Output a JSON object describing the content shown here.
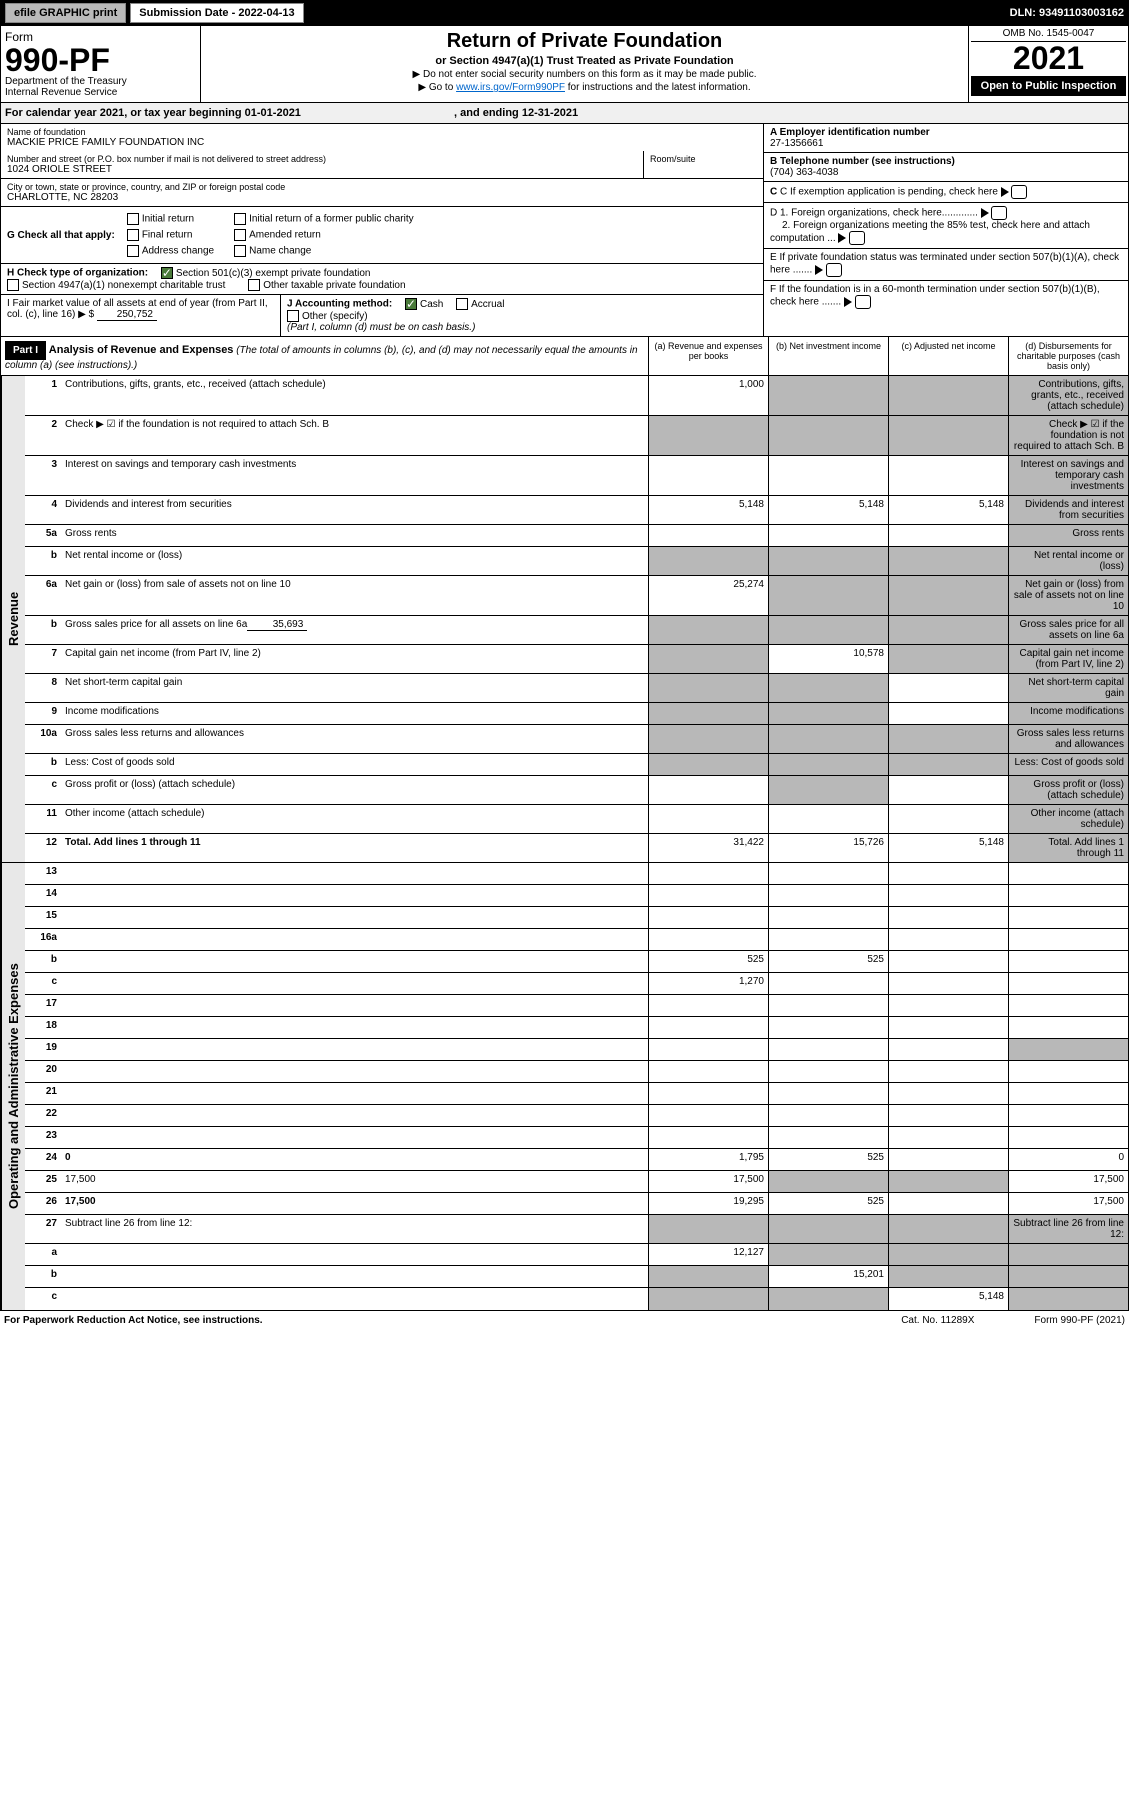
{
  "topbar": {
    "efile": "efile GRAPHIC print",
    "submission_label": "Submission Date - ",
    "submission_date": "2022-04-13",
    "dln_label": "DLN: ",
    "dln": "93491103003162"
  },
  "header": {
    "form_label": "Form",
    "form_no": "990-PF",
    "dept": "Department of the Treasury\nInternal Revenue Service",
    "title": "Return of Private Foundation",
    "subtitle": "or Section 4947(a)(1) Trust Treated as Private Foundation",
    "note1": "▶ Do not enter social security numbers on this form as it may be made public.",
    "note2_pre": "▶ Go to ",
    "note2_link": "www.irs.gov/Form990PF",
    "note2_post": " for instructions and the latest information.",
    "omb": "OMB No. 1545-0047",
    "year": "2021",
    "open": "Open to Public Inspection"
  },
  "calendar": {
    "text_pre": "For calendar year 2021, or tax year beginning ",
    "begin": "01-01-2021",
    "text_mid": " , and ending ",
    "end": "12-31-2021"
  },
  "foundation": {
    "name_label": "Name of foundation",
    "name": "MACKIE PRICE FAMILY FOUNDATION INC",
    "addr_label": "Number and street (or P.O. box number if mail is not delivered to street address)",
    "addr": "1024 ORIOLE STREET",
    "room_label": "Room/suite",
    "city_label": "City or town, state or province, country, and ZIP or foreign postal code",
    "city": "CHARLOTTE, NC  28203",
    "ein_label": "A Employer identification number",
    "ein": "27-1356661",
    "phone_label": "B Telephone number (see instructions)",
    "phone": "(704) 363-4038",
    "c_label": "C If exemption application is pending, check here",
    "d1_label": "D 1. Foreign organizations, check here.............",
    "d2_label": "2. Foreign organizations meeting the 85% test, check here and attach computation ...",
    "e_label": "E  If private foundation status was terminated under section 507(b)(1)(A), check here .......",
    "f_label": "F  If the foundation is in a 60-month termination under section 507(b)(1)(B), check here .......",
    "g_label": "G Check all that apply:",
    "g_opts": [
      "Initial return",
      "Initial return of a former public charity",
      "Final return",
      "Amended return",
      "Address change",
      "Name change"
    ],
    "h_label": "H Check type of organization:",
    "h1": "Section 501(c)(3) exempt private foundation",
    "h2": "Section 4947(a)(1) nonexempt charitable trust",
    "h3": "Other taxable private foundation",
    "i_label": "I Fair market value of all assets at end of year (from Part II, col. (c), line 16) ▶ $",
    "i_value": "250,752",
    "j_label": "J Accounting method:",
    "j_cash": "Cash",
    "j_accrual": "Accrual",
    "j_other": "Other (specify)",
    "j_note": "(Part I, column (d) must be on cash basis.)"
  },
  "part1": {
    "label": "Part I",
    "title": "Analysis of Revenue and Expenses",
    "note": "(The total of amounts in columns (b), (c), and (d) may not necessarily equal the amounts in column (a) (see instructions).)",
    "col_a": "(a) Revenue and expenses per books",
    "col_b": "(b) Net investment income",
    "col_c": "(c) Adjusted net income",
    "col_d": "(d) Disbursements for charitable purposes (cash basis only)"
  },
  "side_labels": {
    "revenue": "Revenue",
    "expenses": "Operating and Administrative Expenses"
  },
  "rows": [
    {
      "n": "1",
      "d": "Contributions, gifts, grants, etc., received (attach schedule)",
      "a": "1,000",
      "b": "",
      "c": "",
      "bg": {
        "b": "g",
        "c": "g",
        "d": "g"
      }
    },
    {
      "n": "2",
      "d": "Check ▶ ☑ if the foundation is not required to attach Sch. B",
      "a": "",
      "b": "",
      "c": "",
      "bg": {
        "a": "g",
        "b": "g",
        "c": "g",
        "d": "g"
      }
    },
    {
      "n": "3",
      "d": "Interest on savings and temporary cash investments",
      "a": "",
      "b": "",
      "c": "",
      "bg": {
        "d": "g"
      }
    },
    {
      "n": "4",
      "d": "Dividends and interest from securities",
      "a": "5,148",
      "b": "5,148",
      "c": "5,148",
      "bg": {
        "d": "g"
      }
    },
    {
      "n": "5a",
      "d": "Gross rents",
      "a": "",
      "b": "",
      "c": "",
      "bg": {
        "d": "g"
      }
    },
    {
      "n": "b",
      "d": "Net rental income or (loss)",
      "a": "",
      "b": "",
      "c": "",
      "bg": {
        "a": "g",
        "b": "g",
        "c": "g",
        "d": "g"
      }
    },
    {
      "n": "6a",
      "d": "Net gain or (loss) from sale of assets not on line 10",
      "a": "25,274",
      "b": "",
      "c": "",
      "bg": {
        "b": "g",
        "c": "g",
        "d": "g"
      }
    },
    {
      "n": "b",
      "d": "Gross sales price for all assets on line 6a",
      "inline": "35,693",
      "bg": {
        "a": "g",
        "b": "g",
        "c": "g",
        "d": "g"
      }
    },
    {
      "n": "7",
      "d": "Capital gain net income (from Part IV, line 2)",
      "a": "",
      "b": "10,578",
      "c": "",
      "bg": {
        "a": "g",
        "c": "g",
        "d": "g"
      }
    },
    {
      "n": "8",
      "d": "Net short-term capital gain",
      "a": "",
      "b": "",
      "c": "",
      "bg": {
        "a": "g",
        "b": "g",
        "d": "g"
      }
    },
    {
      "n": "9",
      "d": "Income modifications",
      "a": "",
      "b": "",
      "c": "",
      "bg": {
        "a": "g",
        "b": "g",
        "d": "g"
      }
    },
    {
      "n": "10a",
      "d": "Gross sales less returns and allowances",
      "bg": {
        "a": "g",
        "b": "g",
        "c": "g",
        "d": "g"
      }
    },
    {
      "n": "b",
      "d": "Less: Cost of goods sold",
      "bg": {
        "a": "g",
        "b": "g",
        "c": "g",
        "d": "g"
      }
    },
    {
      "n": "c",
      "d": "Gross profit or (loss) (attach schedule)",
      "a": "",
      "b": "",
      "c": "",
      "bg": {
        "b": "g",
        "d": "g"
      }
    },
    {
      "n": "11",
      "d": "Other income (attach schedule)",
      "a": "",
      "b": "",
      "c": "",
      "bg": {
        "d": "g"
      }
    },
    {
      "n": "12",
      "d": "Total. Add lines 1 through 11",
      "bold": true,
      "a": "31,422",
      "b": "15,726",
      "c": "5,148",
      "bg": {
        "d": "g"
      }
    }
  ],
  "exp_rows": [
    {
      "n": "13",
      "d": "",
      "a": "",
      "b": "",
      "c": ""
    },
    {
      "n": "14",
      "d": "",
      "a": "",
      "b": "",
      "c": ""
    },
    {
      "n": "15",
      "d": "",
      "a": "",
      "b": "",
      "c": ""
    },
    {
      "n": "16a",
      "d": "",
      "a": "",
      "b": "",
      "c": ""
    },
    {
      "n": "b",
      "d": "",
      "a": "525",
      "b": "525",
      "c": ""
    },
    {
      "n": "c",
      "d": "",
      "a": "1,270",
      "b": "",
      "c": ""
    },
    {
      "n": "17",
      "d": "",
      "a": "",
      "b": "",
      "c": ""
    },
    {
      "n": "18",
      "d": "",
      "a": "",
      "b": "",
      "c": ""
    },
    {
      "n": "19",
      "d": "",
      "a": "",
      "b": "",
      "c": "",
      "bg": {
        "d": "g"
      }
    },
    {
      "n": "20",
      "d": "",
      "a": "",
      "b": "",
      "c": ""
    },
    {
      "n": "21",
      "d": "",
      "a": "",
      "b": "",
      "c": ""
    },
    {
      "n": "22",
      "d": "",
      "a": "",
      "b": "",
      "c": ""
    },
    {
      "n": "23",
      "d": "",
      "a": "",
      "b": "",
      "c": ""
    },
    {
      "n": "24",
      "d": "0",
      "bold": true,
      "a": "1,795",
      "b": "525",
      "c": ""
    },
    {
      "n": "25",
      "d": "17,500",
      "a": "17,500",
      "b": "",
      "c": "",
      "bg": {
        "b": "g",
        "c": "g"
      }
    },
    {
      "n": "26",
      "d": "17,500",
      "bold": true,
      "a": "19,295",
      "b": "525",
      "c": ""
    },
    {
      "n": "27",
      "d": "Subtract line 26 from line 12:",
      "bg": {
        "a": "g",
        "b": "g",
        "c": "g",
        "d": "g"
      }
    },
    {
      "n": "a",
      "d": "",
      "bold": true,
      "a": "12,127",
      "b": "",
      "c": "",
      "bg": {
        "b": "g",
        "c": "g",
        "d": "g"
      }
    },
    {
      "n": "b",
      "d": "",
      "bold": true,
      "a": "",
      "b": "15,201",
      "c": "",
      "bg": {
        "a": "g",
        "c": "g",
        "d": "g"
      }
    },
    {
      "n": "c",
      "d": "",
      "bold": true,
      "a": "",
      "b": "",
      "c": "5,148",
      "bg": {
        "a": "g",
        "b": "g",
        "d": "g"
      }
    }
  ],
  "footer": {
    "left": "For Paperwork Reduction Act Notice, see instructions.",
    "mid": "Cat. No. 11289X",
    "right": "Form 990-PF (2021)"
  }
}
